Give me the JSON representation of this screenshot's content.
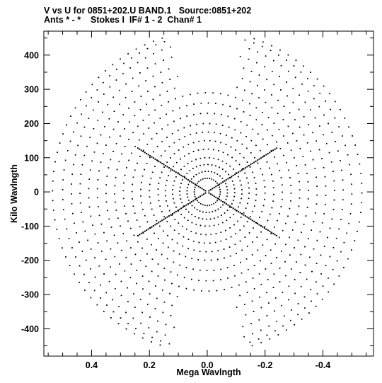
{
  "header": {
    "line1": "V vs U for 0851+202.U BAND.1   Source:0851+202",
    "line2": "Ants * - *    Stokes I  IF# 1 - 2  Chan# 1"
  },
  "chart_data": {
    "type": "scatter",
    "title": "V vs U for 0851+202.U BAND.1   Source:0851+202",
    "subtitle": "Ants * - *    Stokes I  IF# 1 - 2  Chan# 1",
    "xlabel": "Mega Wavlngth",
    "ylabel": "Kilo Wavlngth",
    "x_reversed": true,
    "xlim": [
      0.565,
      -0.575
    ],
    "ylim": [
      -480,
      470
    ],
    "x_ticks": [
      0.4,
      0.2,
      0.0,
      -0.2,
      -0.4
    ],
    "x_tick_labels": [
      "0.4",
      "0.2",
      "0.0",
      "-0.2",
      "-0.4"
    ],
    "y_ticks": [
      400,
      300,
      200,
      100,
      0,
      -100,
      -200,
      -300,
      -400
    ],
    "y_tick_labels": [
      "400",
      "300",
      "200",
      "100",
      "0",
      "-100",
      "-200",
      "-300",
      "-400"
    ],
    "grid": false,
    "marker_color": "#000000",
    "description_of_points": "Radial uv-coverage: concentric elliptical track arcs centred on the origin, symmetric about (0,0), reaching |U| about 0.55 Mega wavelengths and |V| about 450 Kilo wavelengths, with dense diagonal spokes near the centre.",
    "series": [
      {
        "tracks": [
          {
            "r": 0.045,
            "ry": 40
          },
          {
            "r": 0.07,
            "ry": 60
          },
          {
            "r": 0.095,
            "ry": 80
          },
          {
            "r": 0.12,
            "ry": 100
          },
          {
            "r": 0.145,
            "ry": 125
          },
          {
            "r": 0.17,
            "ry": 150
          },
          {
            "r": 0.2,
            "ry": 175
          },
          {
            "r": 0.23,
            "ry": 200
          },
          {
            "r": 0.26,
            "ry": 230
          },
          {
            "r": 0.29,
            "ry": 260
          },
          {
            "r": 0.32,
            "ry": 290
          },
          {
            "r": 0.35,
            "ry": 320
          },
          {
            "r": 0.38,
            "ry": 350
          },
          {
            "r": 0.41,
            "ry": 380
          },
          {
            "r": 0.44,
            "ry": 410
          },
          {
            "r": 0.47,
            "ry": 440
          },
          {
            "r": 0.5,
            "ry": 460
          },
          {
            "r": 0.535,
            "ry": 470
          }
        ]
      }
    ]
  }
}
